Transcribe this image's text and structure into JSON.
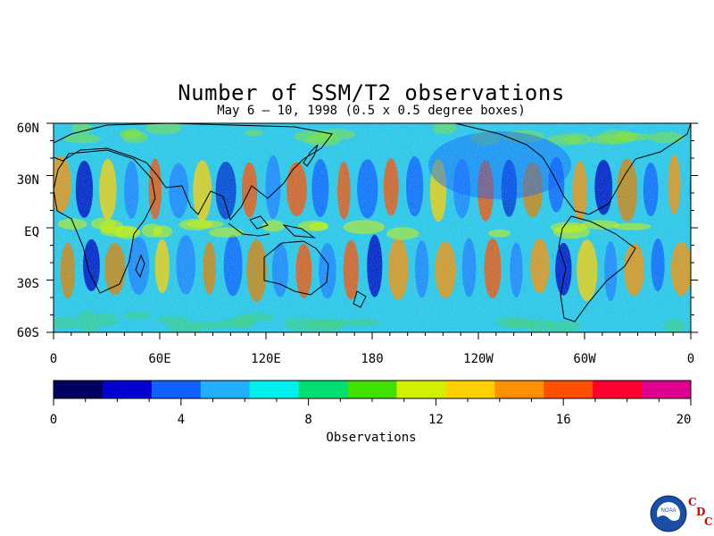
{
  "title": "Number of SSM/T2 observations",
  "subtitle": "May 6 – 10, 1998 (0.5 x 0.5 degree boxes)",
  "map": {
    "latitude_labels": [
      "60N",
      "30N",
      "EQ",
      "30S",
      "60S"
    ],
    "longitude_labels": [
      "0",
      "60E",
      "120E",
      "180",
      "120W",
      "60W",
      "0"
    ]
  },
  "colorbar": {
    "ticks": [
      "0",
      "4",
      "8",
      "12",
      "16",
      "20"
    ],
    "label": "Observations",
    "min": 0,
    "max": 20,
    "colors": [
      "#000060",
      "#0000d0",
      "#1060ff",
      "#20b0ff",
      "#00f0f0",
      "#00e070",
      "#40e000",
      "#d0f000",
      "#ffd000",
      "#ff9000",
      "#ff5000",
      "#ff0030",
      "#e00090"
    ]
  },
  "logo": {
    "org": "NOAA",
    "cdc_letters": [
      "C",
      "D",
      "C"
    ]
  }
}
